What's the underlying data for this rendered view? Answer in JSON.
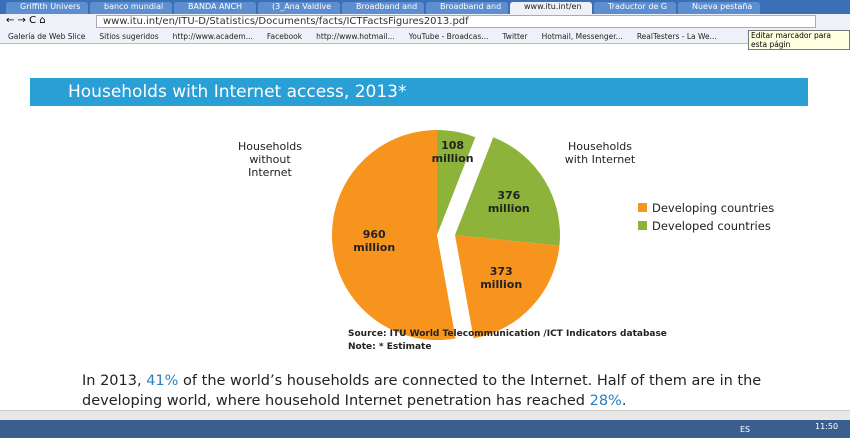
{
  "browser": {
    "tabs": [
      "Griffith Univers",
      "banco mundial",
      "BANDA ANCH",
      "(3_Ana Valdive",
      "Broadband and",
      "Broadband and",
      "www.itu.int/en",
      "Traductor de G",
      "Nueva pestaña"
    ],
    "url": "www.itu.int/en/ITU-D/Statistics/Documents/facts/ICTFactsFigures2013.pdf",
    "bookmarks": [
      "Galería de Web Slice",
      "Sitios sugeridos",
      "http://www.academ...",
      "Facebook",
      "http://www.hotmail...",
      "YouTube - Broadcas...",
      "Twitter",
      "Hotmail, Messenger...",
      "RealTesters - La We..."
    ],
    "tooltip": "Editar marcador para esta págin"
  },
  "banner": {
    "title": "Households with Internet access, 2013*"
  },
  "chart_data": {
    "type": "pie",
    "values": [
      108,
      376,
      373,
      960
    ],
    "value_labels": [
      "108 million",
      "376 million",
      "373 million",
      "960 million"
    ],
    "colors": [
      "#8db33a",
      "#8db33a",
      "#f7941d",
      "#f7941d"
    ],
    "annotations": [
      "Households without Internet",
      "Households with Internet"
    ],
    "legend": [
      {
        "name": "Developing countries",
        "color": "#f7941d"
      },
      {
        "name": "Developed countries",
        "color": "#8db33a"
      }
    ],
    "source": "Source:  ITU World Telecommunication /ICT Indicators database",
    "note": "Note: * Estimate"
  },
  "paragraph": [
    "In 2013, ",
    "41%",
    " of the world’s households are connected to the Internet. Half of them are in the developing world, where household Internet penetration has reached ",
    "28%",
    "."
  ],
  "taskbar": {
    "language": "ES",
    "time": "11:50"
  }
}
